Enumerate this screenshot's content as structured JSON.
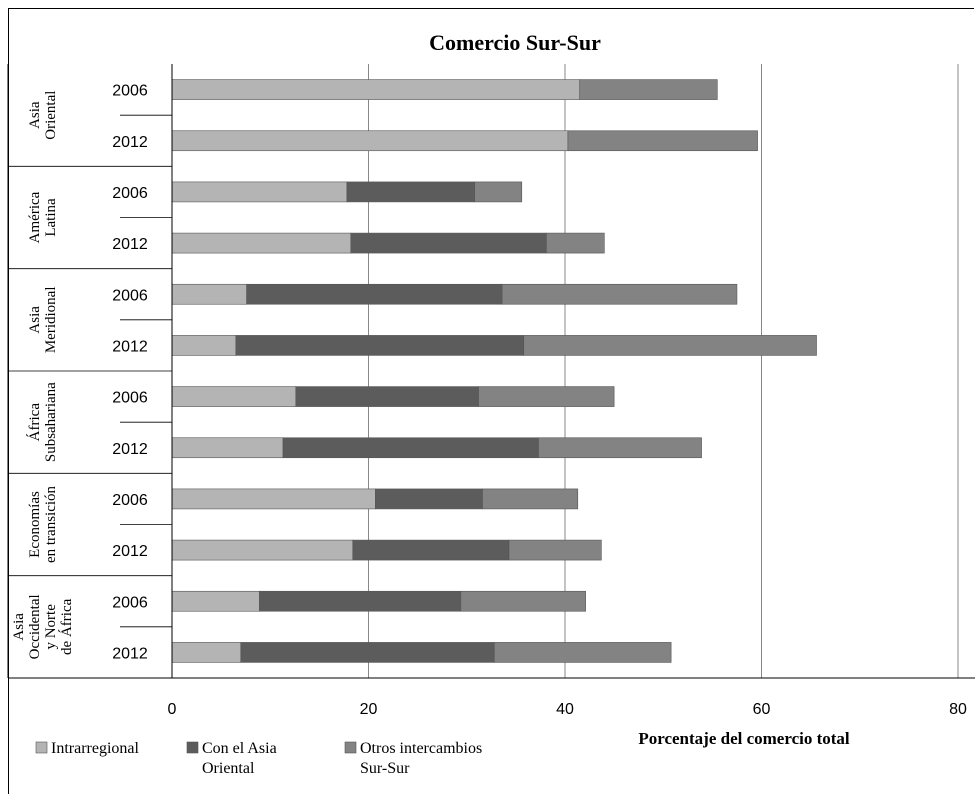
{
  "chart_data": {
    "type": "bar",
    "orientation": "horizontal",
    "stacked": true,
    "title": "Comercio Sur-Sur",
    "xlabel": "Porcentaje del comercio total",
    "xlim": [
      0,
      80
    ],
    "xticks": [
      "0",
      "20",
      "40",
      "60",
      "80"
    ],
    "grid": true,
    "legend_position": "bottom-left",
    "groups": [
      {
        "label_lines": [
          "Asia",
          "Oriental"
        ],
        "rows": [
          {
            "year": "2006",
            "values": [
              41.5,
              0,
              14.0
            ]
          },
          {
            "year": "2012",
            "values": [
              40.3,
              0,
              19.3
            ]
          }
        ]
      },
      {
        "label_lines": [
          "América",
          "Latina"
        ],
        "rows": [
          {
            "year": "2006",
            "values": [
              17.8,
              13.0,
              4.8
            ]
          },
          {
            "year": "2012",
            "values": [
              18.2,
              19.9,
              5.9
            ]
          }
        ]
      },
      {
        "label_lines": [
          "Asia",
          "Meridional"
        ],
        "rows": [
          {
            "year": "2006",
            "values": [
              7.6,
              26.0,
              23.9
            ]
          },
          {
            "year": "2012",
            "values": [
              6.5,
              29.3,
              29.8
            ]
          }
        ]
      },
      {
        "label_lines": [
          "África",
          "Subsahariana"
        ],
        "rows": [
          {
            "year": "2006",
            "values": [
              12.6,
              18.6,
              13.8
            ]
          },
          {
            "year": "2012",
            "values": [
              11.3,
              26.0,
              16.6
            ]
          }
        ]
      },
      {
        "label_lines": [
          "Economías",
          "en transición"
        ],
        "rows": [
          {
            "year": "2006",
            "values": [
              20.7,
              10.9,
              9.7
            ]
          },
          {
            "year": "2012",
            "values": [
              18.4,
              15.9,
              9.4
            ]
          }
        ]
      },
      {
        "label_lines": [
          "Asia",
          "Occidental",
          "y Norte",
          "de África"
        ],
        "rows": [
          {
            "year": "2006",
            "values": [
              8.9,
              20.5,
              12.7
            ]
          },
          {
            "year": "2012",
            "values": [
              7.0,
              25.8,
              18.0
            ]
          }
        ]
      }
    ],
    "series": [
      {
        "name": "Intrarregional",
        "name_lines": [
          "Intrarregional"
        ],
        "color": "#b4b4b4"
      },
      {
        "name": "Con el Asia Oriental",
        "name_lines": [
          "Con el Asia",
          "Oriental"
        ],
        "color": "#5c5c5c"
      },
      {
        "name": "Otros intercambios Sur-Sur",
        "name_lines": [
          "Otros intercambios",
          "Sur-Sur"
        ],
        "color": "#838383"
      }
    ]
  }
}
